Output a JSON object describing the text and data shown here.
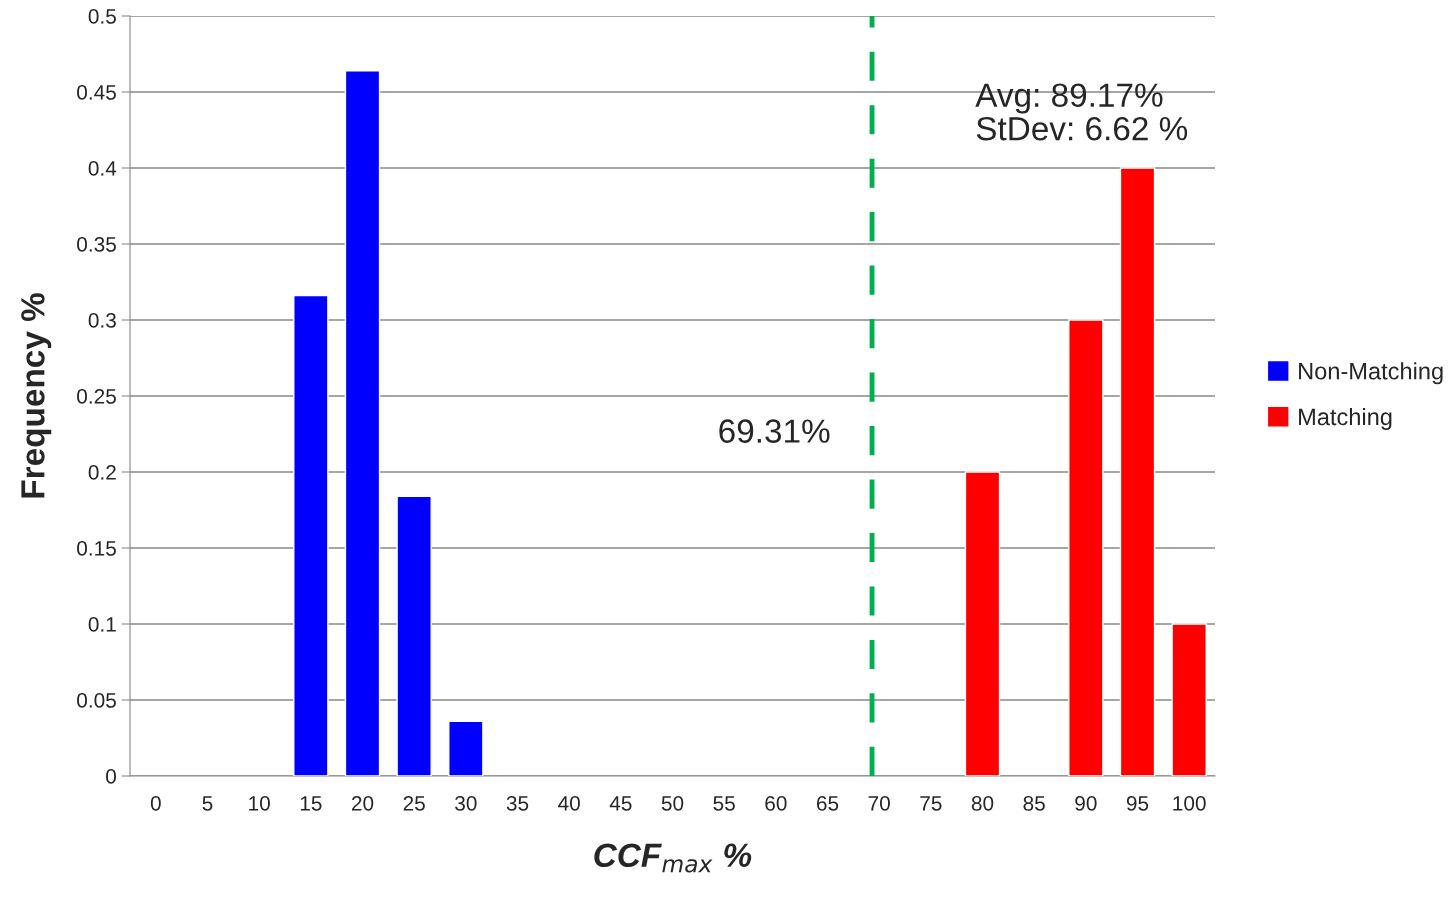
{
  "chart_data": {
    "type": "bar",
    "xlabel": "CCF$_{max}$ %",
    "ylabel": "Frequency %",
    "x": [
      15,
      20,
      25,
      30,
      35,
      40,
      45,
      50,
      55,
      60,
      65,
      70,
      75,
      80,
      85,
      90,
      95,
      100
    ],
    "series": [
      {
        "name": "Non-Matching",
        "color": "#0000ff",
        "values": [
          0.316,
          0.464,
          0.184,
          0.036,
          null,
          null,
          null,
          null,
          null,
          null,
          null,
          null,
          null,
          null,
          null,
          null,
          null,
          null
        ]
      },
      {
        "name": "Matching",
        "color": "#ff0000",
        "values": [
          null,
          null,
          null,
          null,
          null,
          null,
          null,
          null,
          null,
          null,
          null,
          null,
          null,
          0.2,
          null,
          0.3,
          0.4,
          0.1
        ]
      }
    ],
    "xlim": [
      -2.5,
      102.5
    ],
    "xticks": [
      0,
      5,
      10,
      15,
      20,
      25,
      30,
      35,
      40,
      45,
      50,
      55,
      60,
      65,
      70,
      75,
      80,
      85,
      90,
      95,
      100
    ],
    "ylim": [
      0,
      0.5
    ],
    "yticks": [
      0,
      0.05,
      0.1,
      0.15,
      0.2,
      0.25,
      0.3,
      0.35,
      0.4,
      0.45,
      0.5
    ],
    "ref_lines": [
      {
        "axis": "x",
        "value": 69.31,
        "label": "69.31%",
        "color": "#00b050",
        "line_style": "dashed"
      }
    ],
    "annotations": [
      "Avg: 89.17%\nStDev: 6.62 %"
    ],
    "grid": "y",
    "legend": "right"
  }
}
